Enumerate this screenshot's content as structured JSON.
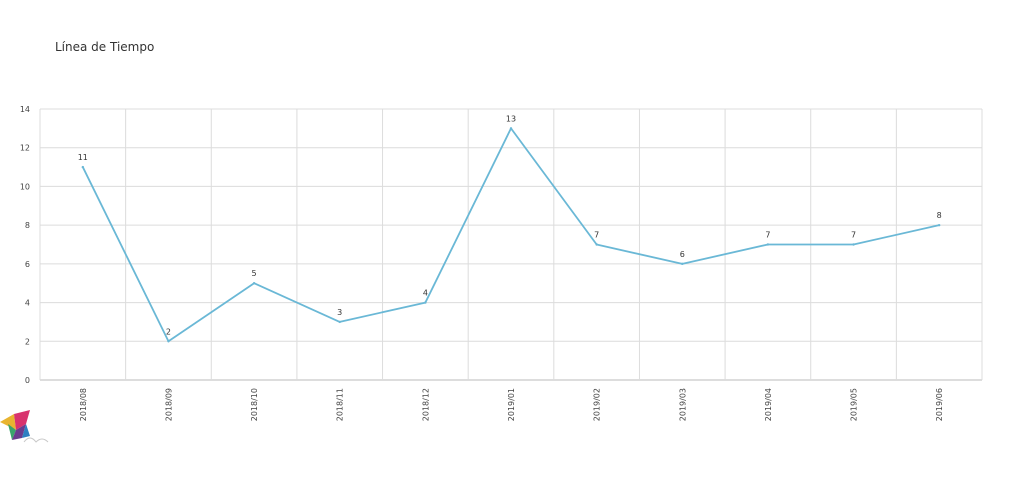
{
  "title": "Línea de Tiempo",
  "chart_data": {
    "type": "line",
    "title": "Línea de Tiempo",
    "xlabel": "",
    "ylabel": "",
    "categories": [
      "2018/08",
      "2018/09",
      "2018/10",
      "2018/11",
      "2018/12",
      "2019/01",
      "2019/02",
      "2019/03",
      "2019/04",
      "2019/05",
      "2019/06"
    ],
    "series": [
      {
        "values": [
          11,
          2,
          5,
          3,
          4,
          13,
          7,
          6,
          7,
          7,
          8
        ]
      }
    ],
    "ylim": [
      0,
      14
    ],
    "yticks": [
      0,
      2,
      4,
      6,
      8,
      10,
      12,
      14
    ],
    "grid": true,
    "legend": "none",
    "line_color": "#6ab8d6",
    "grid_color": "#dcdcdc",
    "axis_color": "#bbbbbb"
  }
}
